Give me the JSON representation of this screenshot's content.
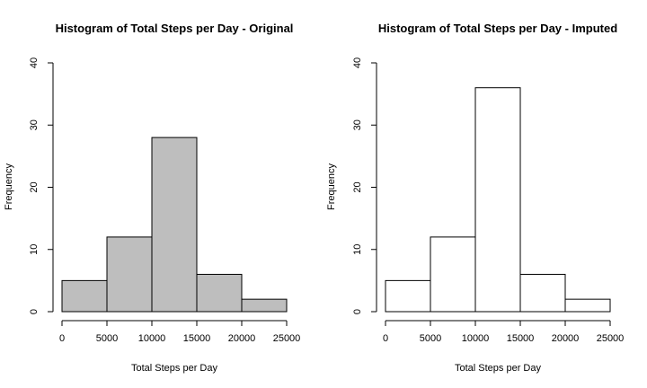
{
  "chart_data": [
    {
      "type": "bar",
      "title": "Histogram of Total Steps per Day - Original",
      "xlabel": "Total Steps per Day",
      "ylabel": "Frequency",
      "bins": [
        [
          0,
          5000
        ],
        [
          5000,
          10000
        ],
        [
          10000,
          15000
        ],
        [
          15000,
          20000
        ],
        [
          20000,
          25000
        ]
      ],
      "values": [
        5,
        12,
        28,
        6,
        2
      ],
      "xlim": [
        0,
        25000
      ],
      "ylim": [
        0,
        40
      ],
      "xticks": [
        0,
        5000,
        10000,
        15000,
        20000,
        25000
      ],
      "yticks": [
        0,
        10,
        20,
        30,
        40
      ],
      "fill": "#bebebe",
      "grid": false
    },
    {
      "type": "bar",
      "title": "Histogram of Total Steps per Day - Imputed",
      "xlabel": "Total Steps per Day",
      "ylabel": "Frequency",
      "bins": [
        [
          0,
          5000
        ],
        [
          5000,
          10000
        ],
        [
          10000,
          15000
        ],
        [
          15000,
          20000
        ],
        [
          20000,
          25000
        ]
      ],
      "values": [
        5,
        12,
        36,
        6,
        2
      ],
      "xlim": [
        0,
        25000
      ],
      "ylim": [
        0,
        40
      ],
      "xticks": [
        0,
        5000,
        10000,
        15000,
        20000,
        25000
      ],
      "yticks": [
        0,
        10,
        20,
        30,
        40
      ],
      "fill": "#ffffff",
      "grid": false
    }
  ]
}
